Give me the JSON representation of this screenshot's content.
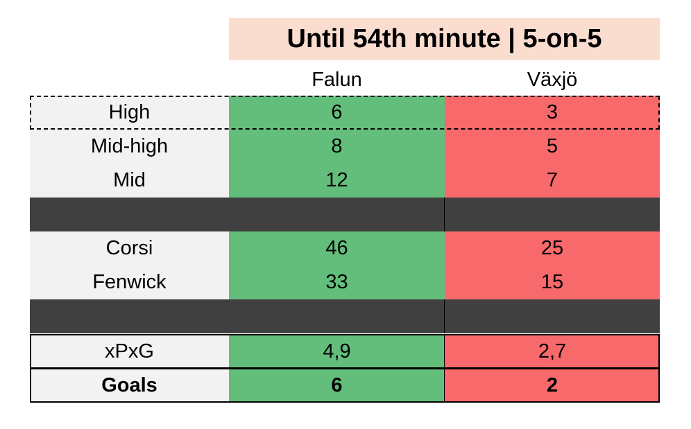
{
  "title": "Until 54th minute | 5-on-5",
  "columns": {
    "team1": "Falun",
    "team2": "Växjö"
  },
  "colors": {
    "title_bg": "#FBDDD0",
    "team1_fill": "#63BE7B",
    "team2_fill": "#F8696B",
    "label_bg": "#F2F2F2",
    "separator": "#404040"
  },
  "rows": {
    "high": {
      "label": "High",
      "falun": "6",
      "vaxjo": "3"
    },
    "midhigh": {
      "label": "Mid-high",
      "falun": "8",
      "vaxjo": "5"
    },
    "mid": {
      "label": "Mid",
      "falun": "12",
      "vaxjo": "7"
    },
    "corsi": {
      "label": "Corsi",
      "falun": "46",
      "vaxjo": "25"
    },
    "fenwick": {
      "label": "Fenwick",
      "falun": "33",
      "vaxjo": "15"
    },
    "xpxg": {
      "label": "xPxG",
      "falun": "4,9",
      "vaxjo": "2,7"
    },
    "goals": {
      "label": "Goals",
      "falun": "6",
      "vaxjo": "2"
    }
  }
}
